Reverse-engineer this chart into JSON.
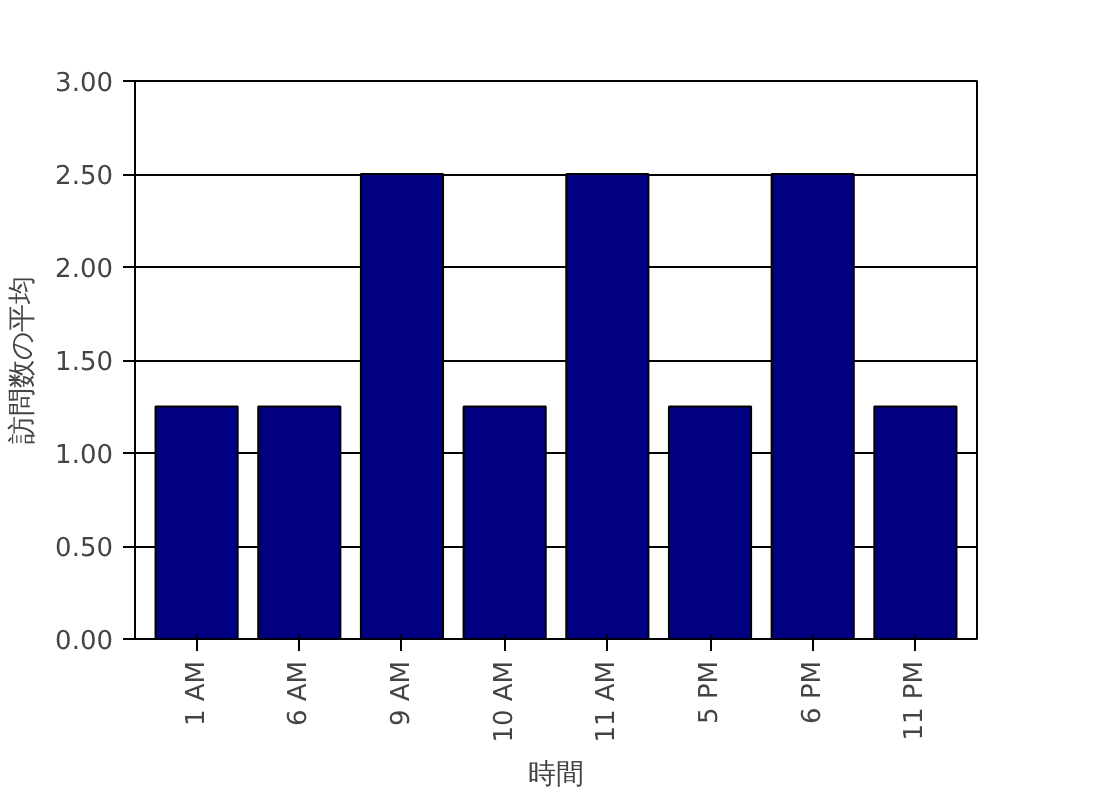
{
  "chart_data": {
    "type": "bar",
    "xlabel": "時間",
    "ylabel": "訪問数の平均",
    "categories": [
      "1 AM",
      "6 AM",
      "9 AM",
      "10 AM",
      "11 AM",
      "5 PM",
      "6 PM",
      "11 PM"
    ],
    "values": [
      1.25,
      1.25,
      2.5,
      1.25,
      2.5,
      1.25,
      2.5,
      1.25
    ],
    "color": "#000080",
    "ylim": [
      0,
      3
    ],
    "yticks": [
      {
        "value": 0,
        "label": "0.00"
      },
      {
        "value": 0.5,
        "label": "0.50"
      },
      {
        "value": 1,
        "label": "1.00"
      },
      {
        "value": 1.5,
        "label": "1.50"
      },
      {
        "value": 2,
        "label": "2.00"
      },
      {
        "value": 2.5,
        "label": "2.50"
      },
      {
        "value": 3,
        "label": "3.00"
      }
    ],
    "grid": "y"
  }
}
